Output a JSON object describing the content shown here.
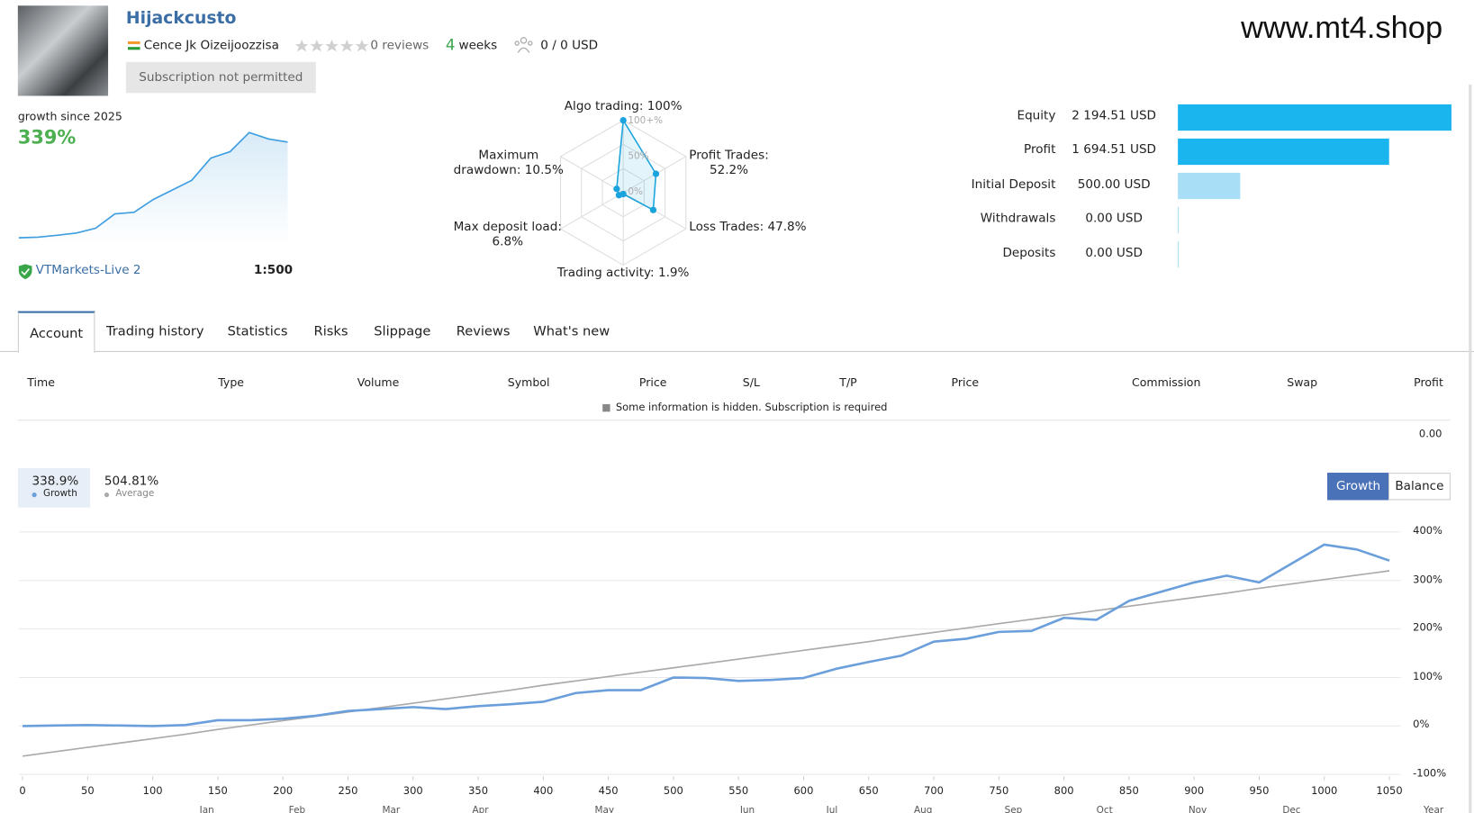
{
  "header": {
    "title": "Hijackcusto",
    "author": "Cence Jk Oizeijoozzisa",
    "reviews": "0 reviews",
    "weeks_count": "4",
    "weeks_unit": "weeks",
    "subscribers": "0 / 0 USD",
    "subscribe_button": "Subscription not permitted",
    "watermark": "www.mt4.shop"
  },
  "growth_summary": {
    "label": "growth since 2025",
    "value": "339%",
    "broker": "VTMarkets-Live 2",
    "leverage": "1:500",
    "sparkline": [
      0,
      2,
      8,
      15,
      30,
      75,
      80,
      120,
      150,
      180,
      250,
      270,
      330,
      310,
      300
    ]
  },
  "radar": {
    "rings": [
      "100+%",
      "50%",
      "0%"
    ],
    "color": "#1aa3dd",
    "axes": [
      {
        "label": "Algo trading: 100%",
        "value": 100
      },
      {
        "label": "Profit Trades:\n52.2%",
        "value": 52.2
      },
      {
        "label": "Loss Trades: 47.8%",
        "value": 47.8
      },
      {
        "label": "Trading activity: 1.9%",
        "value": 1.9
      },
      {
        "label": "Max deposit load:\n6.8%",
        "value": 6.8
      },
      {
        "label": "Maximum\ndrawdown: 10.5%",
        "value": 10.5
      }
    ]
  },
  "balance": {
    "rows": [
      {
        "name": "Equity",
        "label": "2 194.51 USD",
        "value": 2194.51,
        "color": "#1ab4ef"
      },
      {
        "name": "Profit",
        "label": "1 694.51 USD",
        "value": 1694.51,
        "color": "#1ab4ef"
      },
      {
        "name": "Initial Deposit",
        "label": "500.00 USD",
        "value": 500,
        "color": "#a8def6"
      },
      {
        "name": "Withdrawals",
        "label": "0.00 USD",
        "value": 0,
        "color": "#a8def6"
      },
      {
        "name": "Deposits",
        "label": "0.00 USD",
        "value": 0,
        "color": "#a8def6"
      }
    ]
  },
  "tabs": [
    "Account",
    "Trading history",
    "Statistics",
    "Risks",
    "Slippage",
    "Reviews",
    "What's new"
  ],
  "trades_table": {
    "columns": [
      "Time",
      "Type",
      "Volume",
      "Symbol",
      "Price",
      "S/L",
      "T/P",
      "Price",
      "Commission",
      "Swap",
      "Profit"
    ],
    "notice": "Some information is hidden. Subscription is required",
    "total_profit": "0.00"
  },
  "chart_data": {
    "type": "line",
    "stats": [
      {
        "value": "338.9%",
        "name": "Growth"
      },
      {
        "value": "504.81%",
        "name": "Average"
      }
    ],
    "buttons": [
      "Growth",
      "Balance"
    ],
    "x": [
      0,
      25,
      50,
      75,
      100,
      125,
      150,
      175,
      200,
      225,
      250,
      275,
      300,
      325,
      350,
      375,
      400,
      425,
      450,
      475,
      500,
      525,
      550,
      575,
      600,
      625,
      650,
      675,
      700,
      725,
      750,
      775,
      800,
      825,
      850,
      875,
      900,
      925,
      950,
      975,
      1000,
      1025,
      1050
    ],
    "series": [
      {
        "name": "Growth",
        "color": "#6a9fdb",
        "values": [
          0,
          1,
          2,
          1,
          0,
          2,
          12,
          12,
          15,
          21,
          31,
          35,
          39,
          35,
          41,
          45,
          50,
          68,
          74,
          74,
          100,
          99,
          93,
          95,
          99,
          118,
          132,
          145,
          174,
          180,
          194,
          196,
          223,
          219,
          258,
          277,
          296,
          310,
          296,
          335,
          374,
          364,
          341
        ]
      },
      {
        "name": "Average",
        "color": "#aaaaaa",
        "values": [
          -62,
          -53,
          -44,
          -35,
          -26,
          -17,
          -7,
          2,
          11,
          20,
          29,
          38,
          47,
          56,
          65,
          74,
          84,
          93,
          102,
          111,
          120,
          129,
          138,
          147,
          156,
          165,
          174,
          184,
          193,
          202,
          211,
          220,
          229,
          238,
          247,
          256,
          265,
          274,
          284,
          293,
          302,
          311,
          320
        ]
      }
    ],
    "xlim": [
      0,
      1050
    ],
    "xticks": [
      0,
      50,
      100,
      150,
      200,
      250,
      300,
      350,
      400,
      450,
      500,
      550,
      600,
      650,
      700,
      750,
      800,
      850,
      900,
      950,
      1000,
      1050
    ],
    "ylim": [
      -100,
      400
    ],
    "yticks": [
      {
        "value": -100,
        "label": "-100%"
      },
      {
        "value": 0,
        "label": "0%"
      },
      {
        "value": 100,
        "label": "100%"
      },
      {
        "value": 200,
        "label": "200%"
      },
      {
        "value": 300,
        "label": "300%"
      },
      {
        "value": 400,
        "label": "400%"
      }
    ],
    "grid": true,
    "months": [
      "Jan",
      "Feb",
      "Mar",
      "Apr",
      "May",
      "Jun",
      "Jul",
      "Aug",
      "Sep",
      "Oct",
      "Nov",
      "Dec",
      "Year"
    ]
  }
}
